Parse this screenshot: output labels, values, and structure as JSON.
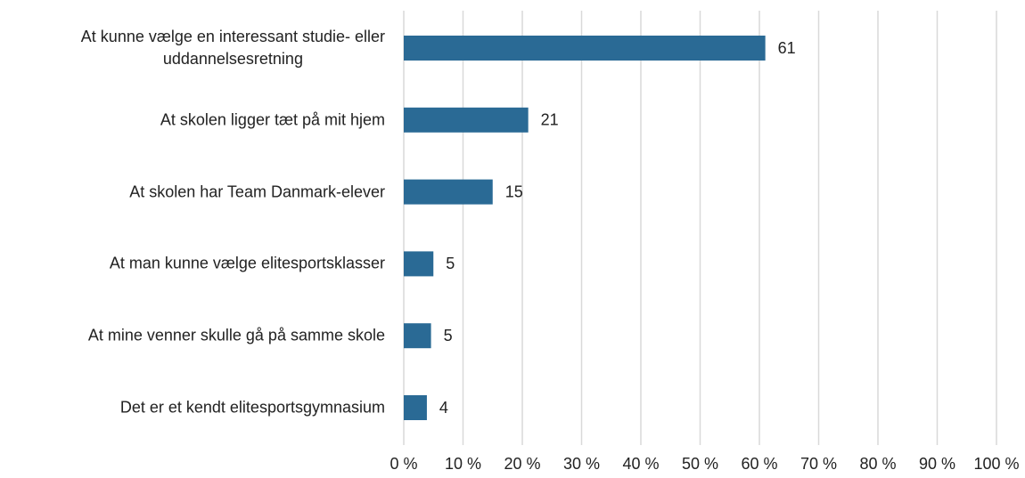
{
  "chart_data": {
    "type": "barh",
    "categories": [
      "At kunne vælge en interessant studie- eller\nuddannelsesretning",
      "At skolen ligger tæt på mit hjem",
      "At skolen har Team Danmark-elever",
      "At man kunne vælge elitesportsklasser",
      "At mine venner skulle gå på samme skole",
      "Det er et kendt elitesportsgymnasium"
    ],
    "values": [
      61,
      21,
      15,
      5,
      4.6,
      3.9
    ],
    "value_labels": [
      "61",
      "21",
      "15",
      "5",
      "5",
      "4"
    ],
    "color": "#2a6a95",
    "xlim": [
      0,
      100
    ],
    "xticks": [
      {
        "value": 0,
        "label": "0 %"
      },
      {
        "value": 10,
        "label": "10 %"
      },
      {
        "value": 20,
        "label": "20 %"
      },
      {
        "value": 30,
        "label": "30 %"
      },
      {
        "value": 40,
        "label": "40 %"
      },
      {
        "value": 50,
        "label": "50 %"
      },
      {
        "value": 60,
        "label": "60 %"
      },
      {
        "value": 70,
        "label": "70 %"
      },
      {
        "value": 80,
        "label": "80 %"
      },
      {
        "value": 90,
        "label": "90 %"
      },
      {
        "value": 100,
        "label": "100 %"
      }
    ],
    "grid": true
  }
}
